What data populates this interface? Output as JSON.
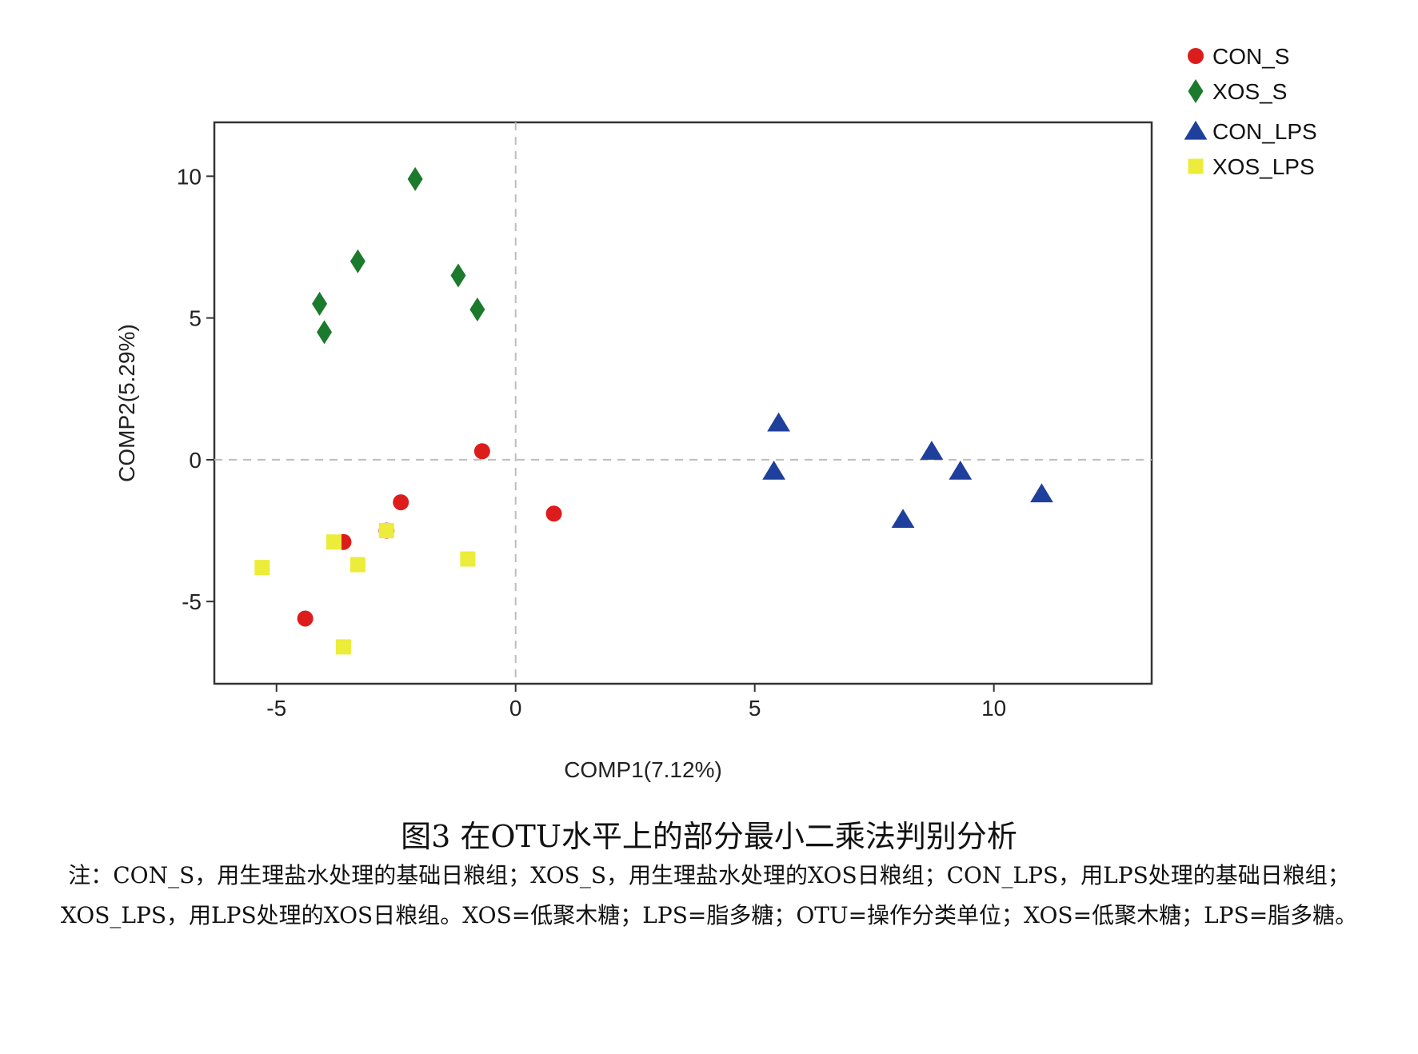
{
  "chart_data": {
    "type": "scatter",
    "xlabel": "COMP1(7.12%)",
    "ylabel": "COMP2(5.29%)",
    "xlim": [
      -6.3,
      13.3
    ],
    "ylim": [
      -7.9,
      11.9
    ],
    "xticks": [
      -5,
      0,
      5,
      10
    ],
    "yticks": [
      -5,
      0,
      5,
      10
    ],
    "xtick_labels": [
      "-5",
      "0",
      "5",
      "10"
    ],
    "ytick_labels": [
      "-5",
      "0",
      "5",
      "10"
    ],
    "reference_lines": {
      "x": 0,
      "y": 0,
      "style": "dashed"
    },
    "grid": false,
    "legend_position": "top-right, outside plot",
    "series": [
      {
        "name": "CON_S",
        "marker": "circle",
        "color": "#dd1c1c",
        "points": [
          [
            -0.7,
            0.3
          ],
          [
            0.8,
            -1.9
          ],
          [
            -2.4,
            -1.5
          ],
          [
            -3.6,
            -2.9
          ],
          [
            -2.7,
            -2.5
          ],
          [
            -4.4,
            -5.6
          ]
        ]
      },
      {
        "name": "XOS_S",
        "marker": "diamond",
        "color": "#1c7a2c",
        "points": [
          [
            -2.1,
            9.9
          ],
          [
            -3.3,
            7.0
          ],
          [
            -1.2,
            6.5
          ],
          [
            -0.8,
            5.3
          ],
          [
            -4.1,
            5.5
          ],
          [
            -4.0,
            4.5
          ]
        ]
      },
      {
        "name": "CON_LPS",
        "marker": "triangle",
        "color": "#1f3f9c",
        "points": [
          [
            5.5,
            1.3
          ],
          [
            5.4,
            -0.4
          ],
          [
            8.7,
            0.3
          ],
          [
            9.3,
            -0.4
          ],
          [
            11.0,
            -1.2
          ],
          [
            8.1,
            -2.1
          ]
        ]
      },
      {
        "name": "XOS_LPS",
        "marker": "square",
        "color": "#ecec3a",
        "points": [
          [
            -5.3,
            -3.8
          ],
          [
            -3.8,
            -2.9
          ],
          [
            -3.3,
            -3.7
          ],
          [
            -2.7,
            -2.5
          ],
          [
            -1.0,
            -3.5
          ],
          [
            -3.6,
            -6.6
          ]
        ]
      }
    ]
  },
  "caption": {
    "title": "图3 在OTU水平上的部分最小二乘法判别分析",
    "note_line1": "注：CON_S，用生理盐水处理的基础日粮组；XOS_S，用生理盐水处理的XOS日粮组；CON_LPS，用LPS处理的基础日粮组；",
    "note_line2": "XOS_LPS，用LPS处理的XOS日粮组。XOS=低聚木糖；LPS=脂多糖；OTU=操作分类单位；XOS=低聚木糖；LPS=脂多糖。"
  }
}
